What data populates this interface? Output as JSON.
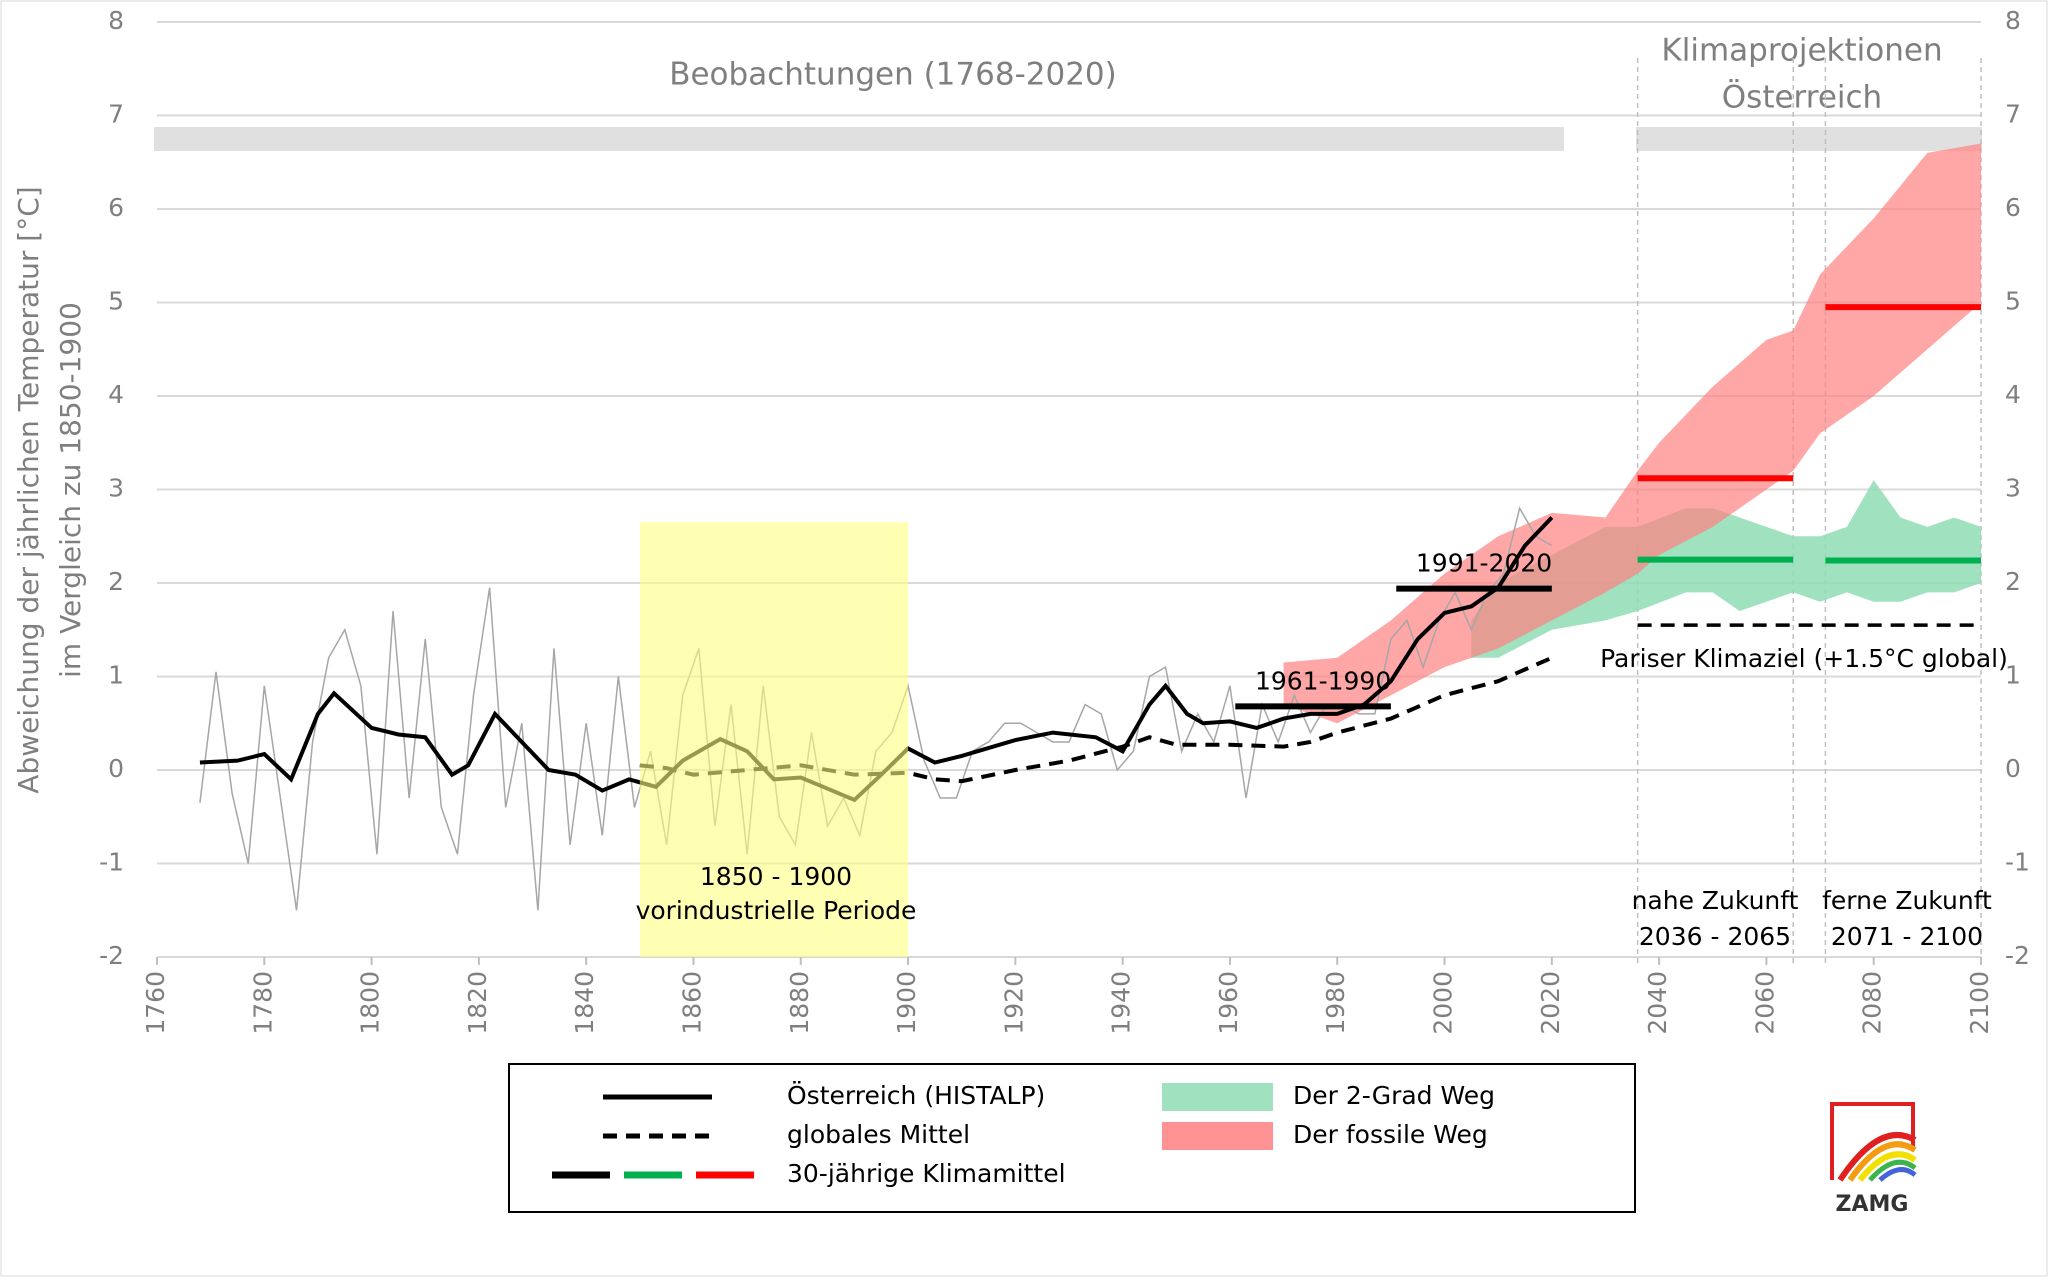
{
  "chart_data": {
    "type": "line",
    "ylabel": [
      "Abweichung der jährlichen Temperatur [°C]",
      "im Vergleich zu 1850-1900"
    ],
    "headers": [
      "Beobachtungen (1768-2020)",
      "Klimaprojektionen",
      "Österreich"
    ],
    "xlim": [
      1760,
      2100
    ],
    "xticks": [
      1760,
      1780,
      1800,
      1820,
      1840,
      1860,
      1880,
      1900,
      1920,
      1940,
      1960,
      1980,
      2000,
      2020,
      2040,
      2060,
      2080,
      2100
    ],
    "ylim": [
      -2,
      8
    ],
    "yticks": [
      -2,
      -1,
      0,
      1,
      2,
      3,
      4,
      5,
      6,
      7,
      8
    ],
    "y2lim": [
      -2,
      8
    ],
    "y2ticks": [
      -2,
      -1,
      0,
      1,
      2,
      3,
      4,
      5,
      6,
      7,
      8
    ],
    "grid": true,
    "annual": {
      "color": "#a6a6a6",
      "x": [
        1768,
        1771,
        1774,
        1777,
        1780,
        1783,
        1786,
        1789,
        1792,
        1795,
        1798,
        1801,
        1804,
        1807,
        1810,
        1813,
        1816,
        1819,
        1822,
        1825,
        1828,
        1831,
        1834,
        1837,
        1840,
        1843,
        1846,
        1849,
        1852,
        1855,
        1858,
        1861,
        1864,
        1867,
        1870,
        1873,
        1876,
        1879,
        1882,
        1885,
        1888,
        1891,
        1894,
        1897,
        1900,
        1903,
        1906,
        1909,
        1912,
        1915,
        1918,
        1921,
        1924,
        1927,
        1930,
        1933,
        1936,
        1939,
        1942,
        1945,
        1948,
        1951,
        1954,
        1957,
        1960,
        1963,
        1966,
        1969,
        1972,
        1975,
        1978,
        1981,
        1984,
        1987,
        1990,
        1993,
        1996,
        1999,
        2002,
        2005,
        2008,
        2011,
        2014,
        2017,
        2020
      ],
      "values": [
        -0.35,
        1.05,
        -0.25,
        -1.0,
        0.9,
        -0.3,
        -1.5,
        0.3,
        1.2,
        1.5,
        0.9,
        -0.9,
        1.7,
        -0.3,
        1.4,
        -0.4,
        -0.9,
        0.8,
        1.95,
        -0.4,
        0.5,
        -1.5,
        1.3,
        -0.8,
        0.5,
        -0.7,
        1.0,
        -0.4,
        0.2,
        -0.8,
        0.8,
        1.3,
        -0.6,
        0.7,
        -0.9,
        0.9,
        -0.5,
        -0.8,
        0.4,
        -0.6,
        -0.3,
        -0.7,
        0.2,
        0.4,
        0.9,
        0.1,
        -0.3,
        -0.3,
        0.2,
        0.3,
        0.5,
        0.5,
        0.4,
        0.3,
        0.3,
        0.7,
        0.6,
        0.0,
        0.2,
        1.0,
        1.1,
        0.2,
        0.6,
        0.3,
        0.9,
        -0.3,
        0.7,
        0.3,
        0.8,
        0.4,
        0.7,
        0.7,
        0.6,
        0.6,
        1.4,
        1.6,
        1.1,
        1.6,
        1.9,
        1.5,
        1.9,
        2.1,
        2.8,
        2.5,
        2.4
      ]
    },
    "series": [
      {
        "name": "Österreich (HISTALP)",
        "color": "#000000",
        "dash": false,
        "x": [
          1768,
          1775,
          1780,
          1785,
          1790,
          1793,
          1800,
          1805,
          1810,
          1815,
          1818,
          1823,
          1828,
          1833,
          1838,
          1843,
          1848,
          1853,
          1858,
          1865,
          1870,
          1875,
          1880,
          1885,
          1890,
          1895,
          1900,
          1905,
          1910,
          1920,
          1927,
          1935,
          1940,
          1945,
          1948,
          1952,
          1955,
          1960,
          1965,
          1970,
          1975,
          1980,
          1985,
          1990,
          1995,
          2000,
          2005,
          2010,
          2015,
          2020
        ],
        "values": [
          0.08,
          0.1,
          0.17,
          -0.1,
          0.6,
          0.82,
          0.45,
          0.38,
          0.35,
          -0.05,
          0.05,
          0.6,
          0.3,
          0.0,
          -0.05,
          -0.22,
          -0.1,
          -0.18,
          0.1,
          0.33,
          0.2,
          -0.1,
          -0.08,
          -0.2,
          -0.32,
          -0.05,
          0.23,
          0.08,
          0.15,
          0.32,
          0.4,
          0.35,
          0.2,
          0.7,
          0.9,
          0.6,
          0.5,
          0.52,
          0.45,
          0.55,
          0.6,
          0.6,
          0.7,
          0.95,
          1.4,
          1.68,
          1.75,
          1.95,
          2.4,
          2.7
        ]
      },
      {
        "name": "globales Mittel",
        "color": "#000000",
        "dash": true,
        "x": [
          1850,
          1855,
          1860,
          1870,
          1880,
          1890,
          1900,
          1905,
          1910,
          1920,
          1930,
          1940,
          1945,
          1950,
          1960,
          1970,
          1975,
          1980,
          1990,
          2000,
          2010,
          2020
        ],
        "values": [
          0.05,
          0.02,
          -0.05,
          0.0,
          0.05,
          -0.05,
          -0.03,
          -0.1,
          -0.12,
          0.0,
          0.1,
          0.25,
          0.35,
          0.27,
          0.27,
          0.25,
          0.3,
          0.4,
          0.55,
          0.8,
          0.95,
          1.2
        ]
      }
    ],
    "bands": [
      {
        "name": "Der 2-Grad Weg",
        "color": "#8fdcb4",
        "x": [
          2005,
          2010,
          2020,
          2030,
          2036,
          2045,
          2050,
          2055,
          2060,
          2065,
          2070,
          2075,
          2080,
          2085,
          2090,
          2095,
          2100
        ],
        "lower": [
          1.2,
          1.2,
          1.5,
          1.6,
          1.7,
          1.9,
          1.9,
          1.7,
          1.8,
          1.9,
          1.8,
          1.9,
          1.8,
          1.8,
          1.9,
          1.9,
          2.0
        ],
        "upper": [
          1.6,
          2.0,
          2.3,
          2.6,
          2.6,
          2.8,
          2.8,
          2.7,
          2.6,
          2.5,
          2.5,
          2.6,
          3.1,
          2.7,
          2.6,
          2.7,
          2.6
        ]
      },
      {
        "name": "Der fossile Weg",
        "color": "#ff8080",
        "x": [
          1970,
          1980,
          1990,
          2000,
          2010,
          2020,
          2030,
          2036,
          2040,
          2050,
          2060,
          2065,
          2070,
          2080,
          2090,
          2100
        ],
        "lower": [
          0.7,
          0.5,
          0.8,
          1.1,
          1.3,
          1.6,
          1.9,
          2.1,
          2.3,
          2.6,
          3.0,
          3.2,
          3.6,
          4.0,
          4.5,
          5.0
        ],
        "upper": [
          1.15,
          1.2,
          1.6,
          2.1,
          2.5,
          2.75,
          2.7,
          3.2,
          3.5,
          4.1,
          4.6,
          4.7,
          5.3,
          5.9,
          6.6,
          6.7
        ]
      }
    ],
    "climate_means": {
      "name": "30-jährige Klimamittel",
      "periods": [
        {
          "x": [
            1961,
            1990
          ],
          "value": 0.68,
          "color": "#000000",
          "label": "1961-1990"
        },
        {
          "x": [
            1991,
            2020
          ],
          "value": 1.94,
          "color": "#000000",
          "label": "1991-2020"
        },
        {
          "x": [
            2036,
            2065
          ],
          "value": 2.25,
          "color": "#00b050"
        },
        {
          "x": [
            2071,
            2100
          ],
          "value": 2.24,
          "color": "#00b050"
        },
        {
          "x": [
            2036,
            2065
          ],
          "value": 3.12,
          "color": "#ff0000"
        },
        {
          "x": [
            2071,
            2100
          ],
          "value": 4.95,
          "color": "#ff0000"
        }
      ]
    },
    "paris": {
      "label": "Pariser Klimaziel (+1.5°C global)",
      "value": 1.55,
      "x": [
        2036,
        2100
      ]
    },
    "reference_period": {
      "x": [
        1850,
        1900
      ],
      "top": 2.65,
      "color": "#ffff80",
      "labels": [
        "1850 - 1900",
        "vorindustrielle Periode"
      ]
    },
    "future_labels": [
      [
        "nahe Zukunft",
        "2036 - 2065"
      ],
      [
        "ferne Zukunft",
        "2071 - 2100"
      ]
    ],
    "logo": "ZAMG"
  }
}
